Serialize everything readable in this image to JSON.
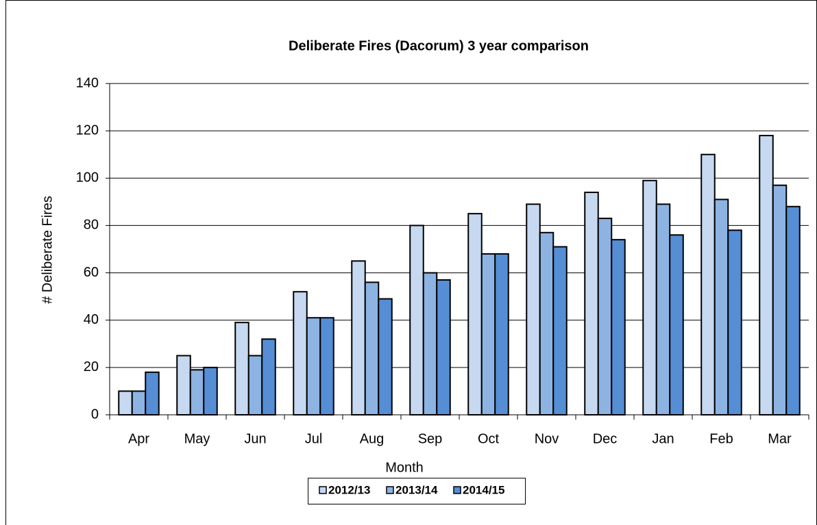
{
  "chart_data": {
    "type": "bar",
    "title": "Deliberate Fires (Dacorum) 3 year comparison",
    "x_label": "Month",
    "y_label": "# Deliberate Fires",
    "categories": [
      "Apr",
      "May",
      "Jun",
      "Jul",
      "Aug",
      "Sep",
      "Oct",
      "Nov",
      "Dec",
      "Jan",
      "Feb",
      "Mar"
    ],
    "series": [
      {
        "name": "2012/13",
        "color": "#c6d9f1",
        "values": [
          10,
          25,
          39,
          52,
          65,
          80,
          85,
          89,
          94,
          99,
          110,
          118
        ]
      },
      {
        "name": "2013/14",
        "color": "#8db3e2",
        "values": [
          10,
          19,
          25,
          41,
          56,
          60,
          68,
          77,
          83,
          89,
          91,
          97
        ]
      },
      {
        "name": "2014/15",
        "color": "#558ed5",
        "values": [
          18,
          20,
          32,
          41,
          49,
          57,
          68,
          71,
          74,
          76,
          78,
          88
        ]
      }
    ],
    "ylim": [
      0,
      140
    ],
    "yticks": [
      0,
      20,
      40,
      60,
      80,
      100,
      120,
      140
    ],
    "grid": true,
    "legend": "bottom"
  }
}
